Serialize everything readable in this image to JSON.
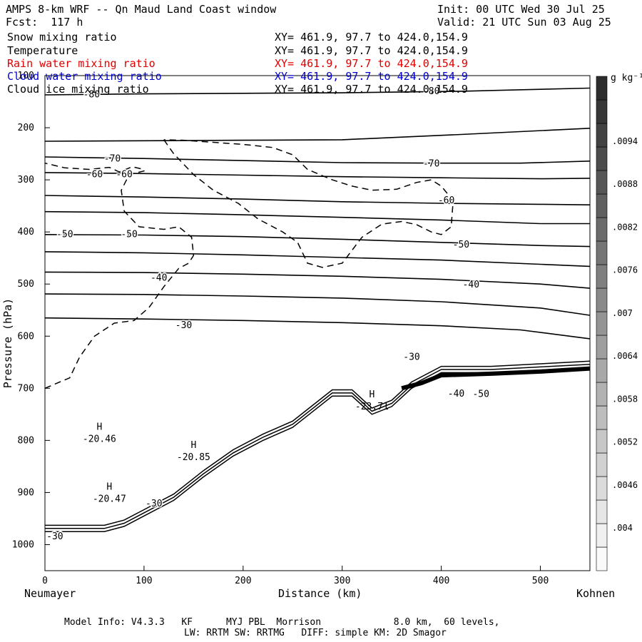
{
  "header": {
    "title": "AMPS 8-km WRF -- Qn Maud Land Coast window",
    "forecast": "Fcst:  117 h",
    "init": "Init: 00 UTC Wed 30 Jul 25",
    "valid": "Valid: 21 UTC Sun 03 Aug 25"
  },
  "fields": [
    {
      "name": "Snow mixing ratio",
      "xy": "XY= 461.9, 97.7 to 424.0,154.9",
      "color": "#000000"
    },
    {
      "name": "Temperature",
      "xy": "XY= 461.9, 97.7 to 424.0,154.9",
      "color": "#000000"
    },
    {
      "name": "Rain water mixing ratio",
      "xy": "XY= 461.9, 97.7 to 424.0,154.9",
      "color": "#e00000"
    },
    {
      "name": "Cloud water mixing ratio",
      "xy": "XY= 461.9, 97.7 to 424.0,154.9",
      "color": "#0000cc"
    },
    {
      "name": "Cloud ice mixing ratio",
      "xy": "XY= 461.9, 97.7 to 424.0,154.9",
      "color": "#000000"
    }
  ],
  "footer": {
    "line1": "Model Info: V4.3.3   KF      MYJ PBL  Morrison             8.0 km,  60 levels,",
    "line2": "LW: RRTM SW: RRTMG   DIFF: simple KM: 2D Smagor"
  },
  "chart_data": {
    "type": "cross-section contour",
    "xlabel": "Distance (km)",
    "ylabel": "Pressure (hPa)",
    "xlim": [
      0,
      550
    ],
    "ylim": [
      1050,
      100
    ],
    "x_ticks": [
      0,
      100,
      200,
      300,
      400,
      500
    ],
    "y_ticks": [
      100,
      200,
      300,
      400,
      500,
      600,
      700,
      800,
      900,
      1000
    ],
    "x_end_labels": {
      "left": "Neumayer",
      "right": "Kohnen"
    },
    "grid": false,
    "temperature_isotherms": [
      {
        "label": "-80",
        "points": [
          [
            0,
            137
          ],
          [
            100,
            135
          ],
          [
            200,
            134
          ],
          [
            300,
            133
          ],
          [
            420,
            130
          ],
          [
            550,
            124
          ]
        ]
      },
      {
        "label": "-70",
        "points": [
          [
            0,
            226
          ],
          [
            100,
            225
          ],
          [
            200,
            224
          ],
          [
            300,
            223
          ],
          [
            420,
            213
          ],
          [
            550,
            201
          ]
        ]
      },
      {
        "label": "-70",
        "points": [
          [
            0,
            256
          ],
          [
            100,
            259
          ],
          [
            200,
            263
          ],
          [
            300,
            267
          ],
          [
            400,
            268
          ],
          [
            480,
            268
          ],
          [
            550,
            264
          ]
        ]
      },
      {
        "label": "-60",
        "points": [
          [
            0,
            286
          ],
          [
            100,
            288
          ],
          [
            200,
            291
          ],
          [
            300,
            294
          ],
          [
            400,
            296
          ],
          [
            500,
            298
          ],
          [
            550,
            297
          ]
        ]
      },
      {
        "label": "-60",
        "points": [
          [
            0,
            330
          ],
          [
            100,
            333
          ],
          [
            200,
            337
          ],
          [
            300,
            342
          ],
          [
            400,
            345
          ],
          [
            500,
            347
          ],
          [
            550,
            348
          ]
        ]
      },
      {
        "label": "-50",
        "points": [
          [
            0,
            361
          ],
          [
            100,
            363
          ],
          [
            200,
            367
          ],
          [
            300,
            372
          ],
          [
            400,
            377
          ],
          [
            500,
            384
          ],
          [
            550,
            384
          ]
        ]
      },
      {
        "label": "-50",
        "points": [
          [
            0,
            405
          ],
          [
            100,
            406
          ],
          [
            200,
            409
          ],
          [
            300,
            414
          ],
          [
            400,
            420
          ],
          [
            500,
            426
          ],
          [
            550,
            428
          ]
        ]
      },
      {
        "label": "-40",
        "points": [
          [
            0,
            438
          ],
          [
            100,
            440
          ],
          [
            200,
            444
          ],
          [
            300,
            449
          ],
          [
            400,
            454
          ],
          [
            500,
            462
          ],
          [
            550,
            466
          ]
        ]
      },
      {
        "label": "-40",
        "points": [
          [
            0,
            477
          ],
          [
            100,
            478
          ],
          [
            200,
            481
          ],
          [
            300,
            485
          ],
          [
            400,
            491
          ],
          [
            500,
            500
          ],
          [
            550,
            508
          ]
        ]
      },
      {
        "label": "-40",
        "points": [
          [
            0,
            519
          ],
          [
            100,
            520
          ],
          [
            200,
            523
          ],
          [
            300,
            527
          ],
          [
            400,
            534
          ],
          [
            500,
            546
          ],
          [
            550,
            560
          ]
        ]
      },
      {
        "label": "-30",
        "points": [
          [
            0,
            565
          ],
          [
            100,
            567
          ],
          [
            200,
            570
          ],
          [
            300,
            574
          ],
          [
            400,
            580
          ],
          [
            480,
            588
          ],
          [
            550,
            605
          ]
        ]
      }
    ],
    "terrain_profile": {
      "x": [
        0,
        30,
        60,
        80,
        100,
        130,
        160,
        190,
        220,
        250,
        270,
        290,
        310,
        330,
        350,
        370,
        400,
        450,
        500,
        550
      ],
      "p": [
        975,
        975,
        975,
        965,
        945,
        915,
        870,
        830,
        800,
        775,
        745,
        715,
        715,
        750,
        735,
        700,
        670,
        670,
        665,
        660
      ]
    },
    "cloud_ice_contour_style": "dashed",
    "annotations": [
      {
        "text": "H",
        "value": "-20.46",
        "x": 55,
        "p": 800
      },
      {
        "text": "H",
        "value": "-20.47",
        "x": 65,
        "p": 915
      },
      {
        "text": "H",
        "value": "-20.85",
        "x": 150,
        "p": 835
      },
      {
        "text": "H",
        "value": "-23.71",
        "x": 330,
        "p": 738
      }
    ],
    "contour_labels": [
      {
        "text": "-80",
        "x": 47,
        "p": 137
      },
      {
        "text": "-80",
        "x": 390,
        "p": 131
      },
      {
        "text": "-70",
        "x": 68,
        "p": 260
      },
      {
        "text": "-70",
        "x": 390,
        "p": 270
      },
      {
        "text": "-60",
        "x": 50,
        "p": 290
      },
      {
        "text": "-60",
        "x": 80,
        "p": 290
      },
      {
        "text": "-60",
        "x": 405,
        "p": 340
      },
      {
        "text": "-50",
        "x": 20,
        "p": 405
      },
      {
        "text": "-50",
        "x": 85,
        "p": 405
      },
      {
        "text": "-50",
        "x": 420,
        "p": 425
      },
      {
        "text": "-40",
        "x": 115,
        "p": 489
      },
      {
        "text": "-40",
        "x": 430,
        "p": 502
      },
      {
        "text": "-40",
        "x": 415,
        "p": 711
      },
      {
        "text": "-30",
        "x": 140,
        "p": 580
      },
      {
        "text": "-30",
        "x": 370,
        "p": 641
      },
      {
        "text": "-30",
        "x": 110,
        "p": 922
      },
      {
        "text": "-30",
        "x": 10,
        "p": 985
      },
      {
        "text": "-50",
        "x": 440,
        "p": 712
      }
    ],
    "colorbar": {
      "unit": "g kg⁻¹",
      "tick_labels": [
        ".0094",
        ".0088",
        ".0082",
        ".0076",
        ".007",
        ".0064",
        ".0058",
        ".0052",
        ".0046",
        ".004"
      ],
      "levels": [
        0.0037,
        0.004,
        0.0043,
        0.0046,
        0.0049,
        0.0052,
        0.0055,
        0.0058,
        0.0061,
        0.0064,
        0.0067,
        0.007,
        0.0073,
        0.0076,
        0.0079,
        0.0082,
        0.0085,
        0.0088,
        0.0091,
        0.0094,
        0.0097
      ]
    }
  }
}
